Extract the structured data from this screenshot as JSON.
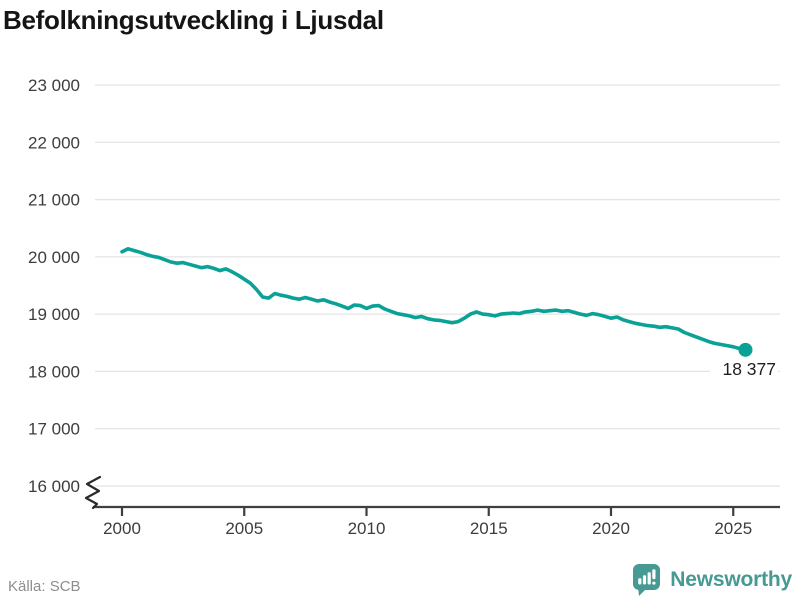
{
  "title": "Befolkningsutveckling i Ljusdal",
  "footer": {
    "source": "Källa: SCB",
    "brand": "Newsworthy"
  },
  "colors": {
    "line": "#0aa296",
    "grid": "#e4e4e4",
    "axis": "#3f3f3f",
    "tick_label": "#3d3d3d",
    "annotation": "#1f1f1f",
    "brand": "#479a93",
    "source_text": "#8e8e8e"
  },
  "chart_data": {
    "type": "line",
    "title": "Befolkningsutveckling i Ljusdal",
    "xlabel": "",
    "ylabel": "",
    "grid": "horizontal",
    "x_axis": {
      "start_year": 2000,
      "points_per_year": 4,
      "ticks": [
        2000,
        2005,
        2010,
        2015,
        2020,
        2025
      ],
      "tick_labels": [
        "2000",
        "2005",
        "2010",
        "2015",
        "2020",
        "2025"
      ]
    },
    "y_axis": {
      "range": [
        16000,
        23000
      ],
      "ticks": [
        16000,
        17000,
        18000,
        19000,
        20000,
        21000,
        22000,
        23000
      ],
      "tick_labels": [
        "16 000",
        "17 000",
        "18 000",
        "19 000",
        "20 000",
        "21 000",
        "22 000",
        "23 000"
      ],
      "axis_break": true
    },
    "series": [
      {
        "name": "Befolkning i Ljusdal (kvartal)",
        "values": [
          20090,
          20140,
          20110,
          20080,
          20040,
          20010,
          19990,
          19950,
          19910,
          19890,
          19900,
          19870,
          19840,
          19810,
          19830,
          19800,
          19760,
          19790,
          19740,
          19680,
          19610,
          19540,
          19430,
          19300,
          19280,
          19360,
          19330,
          19310,
          19280,
          19260,
          19290,
          19260,
          19230,
          19250,
          19210,
          19180,
          19140,
          19100,
          19160,
          19150,
          19100,
          19140,
          19150,
          19090,
          19050,
          19010,
          18990,
          18970,
          18940,
          18960,
          18920,
          18900,
          18890,
          18870,
          18850,
          18870,
          18930,
          19000,
          19040,
          19000,
          18990,
          18970,
          19000,
          19010,
          19020,
          19010,
          19040,
          19050,
          19070,
          19050,
          19060,
          19070,
          19050,
          19060,
          19030,
          19000,
          18980,
          19010,
          18990,
          18960,
          18930,
          18950,
          18900,
          18870,
          18840,
          18820,
          18800,
          18790,
          18770,
          18780,
          18760,
          18740,
          18680,
          18640,
          18600,
          18560,
          18520,
          18490,
          18470,
          18450,
          18430,
          18400,
          18377
        ]
      }
    ],
    "last_point": {
      "value": 18377,
      "label": "18 377"
    }
  }
}
